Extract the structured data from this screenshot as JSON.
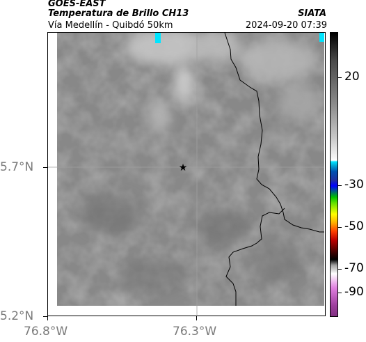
{
  "header": {
    "satellite": "GOES-EAST",
    "product": "Temperatura de Brillo CH13",
    "route": "Vía Medellín - Quibdó 50km",
    "organization": "SIATA",
    "datetime": "2024-09-20 07:39"
  },
  "map": {
    "lat_labels": [
      "5.7°N",
      "5.2°N"
    ],
    "lon_labels": [
      "76.8°W",
      "76.3°W"
    ],
    "marker": "star-icon"
  },
  "colorbar": {
    "labels": [
      "20",
      "-30",
      "-50",
      "-70",
      "-90"
    ]
  },
  "colors": {
    "gray_base": "#8c8c8c",
    "cyan": "#00e5ff",
    "boundary": "#000000"
  }
}
